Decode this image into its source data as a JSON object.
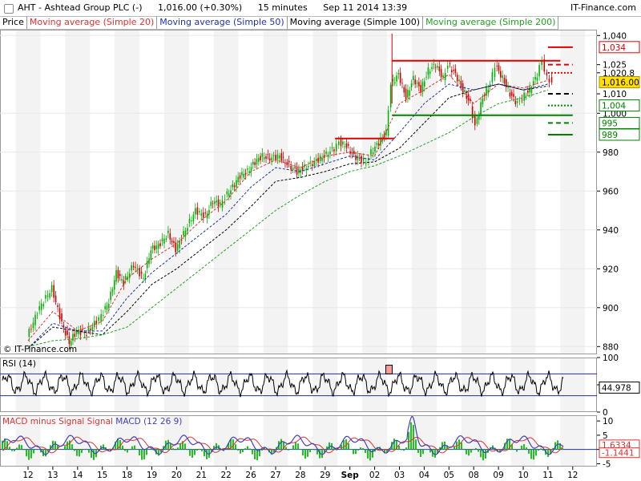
{
  "header": {
    "symbol": "AHT - Ashtead Group PLC (-)",
    "quote": "1,016.00 (+0.30%)",
    "interval": "15 minutes",
    "datetime": "Sep 11 2014 13:39",
    "brand": "IT-Finance.com"
  },
  "legend": [
    {
      "label": "Price",
      "color": "#000000"
    },
    {
      "label": "Moving average (Simple 20)",
      "color": "#e03030"
    },
    {
      "label": "Moving average (Simple 50)",
      "color": "#2030b0"
    },
    {
      "label": "Moving average (Simple 100)",
      "color": "#000000"
    },
    {
      "label": "Moving average (Simple 200)",
      "color": "#20a020"
    }
  ],
  "watermark": "© IT-Finance.com",
  "colors": {
    "up": "#00b000",
    "down": "#d00000",
    "ma20": "#e03030",
    "ma50": "#2030b0",
    "ma100": "#000000",
    "ma200": "#20a020",
    "level_red": "#e00000",
    "level_green": "#008000",
    "level_black": "#000000",
    "grid": "#e8e8e8",
    "rsi_line": "#2030a0",
    "macd_line": "#4040c0",
    "signal_line": "#e03030",
    "hist": "#20c020"
  },
  "chart_data": [
    {
      "type": "candlestick",
      "panel": "price",
      "x_tick_labels": [
        "12",
        "13",
        "14",
        "15",
        "18",
        "19",
        "20",
        "21",
        "22",
        "26",
        "27",
        "28",
        "29",
        "Sep",
        "02",
        "03",
        "04",
        "05",
        "08",
        "09",
        "10",
        "11",
        "12"
      ],
      "ylim": [
        876,
        1043
      ],
      "y_ticks": [
        880,
        900,
        920,
        940,
        960,
        980,
        1000,
        1010,
        1020.8,
        1025,
        1040
      ],
      "y_tick_labels": [
        "880",
        "900",
        "920",
        "940",
        "960",
        "980",
        "1,000",
        "1,010",
        "1,020.8",
        "1,025",
        "1,040"
      ],
      "price_path": [
        [
          0,
          885
        ],
        [
          0.5,
          900
        ],
        [
          1.0,
          910
        ],
        [
          1.4,
          892
        ],
        [
          1.7,
          882
        ],
        [
          2.0,
          888
        ],
        [
          2.4,
          887
        ],
        [
          2.8,
          893
        ],
        [
          3.0,
          896
        ],
        [
          3.3,
          903
        ],
        [
          3.6,
          918
        ],
        [
          3.9,
          913
        ],
        [
          4.3,
          922
        ],
        [
          4.7,
          915
        ],
        [
          5.0,
          930
        ],
        [
          5.3,
          932
        ],
        [
          5.7,
          938
        ],
        [
          6.0,
          930
        ],
        [
          6.4,
          940
        ],
        [
          6.8,
          950
        ],
        [
          7.2,
          947
        ],
        [
          7.5,
          955
        ],
        [
          7.8,
          953
        ],
        [
          8.0,
          957
        ],
        [
          8.3,
          962
        ],
        [
          8.6,
          968
        ],
        [
          8.9,
          970
        ],
        [
          9.2,
          975
        ],
        [
          9.5,
          978
        ],
        [
          9.8,
          977
        ],
        [
          10.2,
          978
        ],
        [
          10.5,
          974
        ],
        [
          10.9,
          970
        ],
        [
          11.2,
          972
        ],
        [
          11.6,
          975
        ],
        [
          12.0,
          978
        ],
        [
          12.4,
          982
        ],
        [
          12.6,
          985
        ],
        [
          12.9,
          983
        ],
        [
          13.2,
          978
        ],
        [
          13.5,
          976
        ],
        [
          13.7,
          975
        ],
        [
          13.9,
          980
        ],
        [
          14.2,
          985
        ],
        [
          14.5,
          990
        ],
        [
          14.7,
          1015
        ],
        [
          15.0,
          1020
        ],
        [
          15.3,
          1008
        ],
        [
          15.6,
          1018
        ],
        [
          15.9,
          1012
        ],
        [
          16.2,
          1022
        ],
        [
          16.5,
          1025
        ],
        [
          16.8,
          1018
        ],
        [
          17.0,
          1025
        ],
        [
          17.3,
          1020
        ],
        [
          17.6,
          1012
        ],
        [
          17.9,
          1005
        ],
        [
          18.1,
          993
        ],
        [
          18.4,
          1008
        ],
        [
          18.7,
          1015
        ],
        [
          18.9,
          1025
        ],
        [
          19.2,
          1018
        ],
        [
          19.5,
          1010
        ],
        [
          19.8,
          1005
        ],
        [
          20.0,
          1008
        ],
        [
          20.3,
          1012
        ],
        [
          20.6,
          1020
        ],
        [
          20.8,
          1027
        ],
        [
          21.0,
          1018
        ],
        [
          21.2,
          1016
        ]
      ],
      "series": [
        {
          "name": "Moving average (Simple 20)",
          "points": [
            [
              0,
              883
            ],
            [
              1,
              898
            ],
            [
              2,
              888
            ],
            [
              3,
              893
            ],
            [
              4,
              915
            ],
            [
              5,
              925
            ],
            [
              6,
              933
            ],
            [
              7,
              945
            ],
            [
              8,
              955
            ],
            [
              9,
              970
            ],
            [
              10,
              976
            ],
            [
              11,
              972
            ],
            [
              12,
              978
            ],
            [
              13,
              980
            ],
            [
              14,
              978
            ],
            [
              15,
              1005
            ],
            [
              16,
              1012
            ],
            [
              17,
              1020
            ],
            [
              18,
              1005
            ],
            [
              19,
              1015
            ],
            [
              20,
              1013
            ],
            [
              21,
              1017
            ]
          ]
        },
        {
          "name": "Moving average (Simple 50)",
          "points": [
            [
              0,
              879
            ],
            [
              1,
              892
            ],
            [
              2,
              888
            ],
            [
              3,
              888
            ],
            [
              4,
              905
            ],
            [
              5,
              918
            ],
            [
              6,
              928
            ],
            [
              7,
              938
            ],
            [
              8,
              948
            ],
            [
              9,
              962
            ],
            [
              10,
              972
            ],
            [
              11,
              970
            ],
            [
              12,
              974
            ],
            [
              13,
              978
            ],
            [
              14,
              976
            ],
            [
              15,
              990
            ],
            [
              16,
              1005
            ],
            [
              17,
              1015
            ],
            [
              18,
              1012
            ],
            [
              19,
              1015
            ],
            [
              20,
              1012
            ],
            [
              21,
              1015
            ]
          ]
        },
        {
          "name": "Moving average (Simple 100)",
          "points": [
            [
              0,
              879
            ],
            [
              1,
              890
            ],
            [
              2,
              888
            ],
            [
              3,
              886
            ],
            [
              4,
              898
            ],
            [
              5,
              912
            ],
            [
              6,
              920
            ],
            [
              7,
              930
            ],
            [
              8,
              940
            ],
            [
              9,
              952
            ],
            [
              10,
              965
            ],
            [
              11,
              967
            ],
            [
              12,
              970
            ],
            [
              13,
              974
            ],
            [
              14,
              975
            ],
            [
              15,
              982
            ],
            [
              16,
              995
            ],
            [
              17,
              1008
            ],
            [
              18,
              1012
            ],
            [
              19,
              1015
            ],
            [
              20,
              1012
            ],
            [
              21,
              1014
            ]
          ]
        },
        {
          "name": "Moving average (Simple 200)",
          "points": [
            [
              0,
              880
            ],
            [
              1,
              883
            ],
            [
              2,
              884
            ],
            [
              3,
              886
            ],
            [
              4,
              890
            ],
            [
              5,
              900
            ],
            [
              6,
              910
            ],
            [
              7,
              920
            ],
            [
              8,
              930
            ],
            [
              9,
              940
            ],
            [
              10,
              950
            ],
            [
              11,
              958
            ],
            [
              12,
              965
            ],
            [
              13,
              970
            ],
            [
              14,
              973
            ],
            [
              15,
              978
            ],
            [
              16,
              984
            ],
            [
              17,
              990
            ],
            [
              18,
              998
            ],
            [
              19,
              1005
            ],
            [
              20,
              1008
            ],
            [
              21,
              1012
            ]
          ]
        }
      ],
      "levels": [
        {
          "x_from": 12.4,
          "x_to": 14.8,
          "y": 987,
          "color": "#e00000",
          "style": "solid"
        },
        {
          "x_from": 14.7,
          "x_to": 21.5,
          "y": 1027,
          "color": "#e00000",
          "style": "solid"
        },
        {
          "x_from": 14.7,
          "x_to": 22.0,
          "y": 999,
          "color": "#008000",
          "style": "solid"
        },
        {
          "x_from": 21.0,
          "x_to": 22.0,
          "y": 1034,
          "color": "#e00000",
          "style": "solid"
        },
        {
          "x_from": 21.0,
          "x_to": 22.0,
          "y": 1025,
          "color": "#e00000",
          "style": "dashed"
        },
        {
          "x_from": 21.0,
          "x_to": 22.0,
          "y": 1020.8,
          "color": "#e00000",
          "style": "dotted"
        },
        {
          "x_from": 21.0,
          "x_to": 22.0,
          "y": 1010,
          "color": "#000000",
          "style": "dashed"
        },
        {
          "x_from": 21.0,
          "x_to": 22.0,
          "y": 1004,
          "color": "#008000",
          "style": "dotted"
        },
        {
          "x_from": 21.0,
          "x_to": 22.0,
          "y": 995,
          "color": "#008000",
          "style": "dashed"
        },
        {
          "x_from": 21.0,
          "x_to": 22.0,
          "y": 989,
          "color": "#008000",
          "style": "solid"
        }
      ],
      "value_tags": [
        {
          "label": "1,034",
          "y": 1034,
          "border": "#e00000",
          "fill": "#ffffff",
          "text": "#e00000"
        },
        {
          "label": "1,016.00",
          "y": 1016,
          "border": "#b09000",
          "fill": "#ffe000",
          "text": "#000000"
        },
        {
          "label": "1,004",
          "y": 1004,
          "border": "#008000",
          "fill": "#ffffff",
          "text": "#008000"
        },
        {
          "label": "995",
          "y": 995,
          "border": "#008000",
          "fill": "#ffffff",
          "text": "#008000"
        },
        {
          "label": "989",
          "y": 989,
          "border": "#008000",
          "fill": "#ffffff",
          "text": "#008000"
        }
      ]
    },
    {
      "type": "line",
      "panel": "rsi",
      "title": "RSI (14)",
      "ylim": [
        0,
        100
      ],
      "y_ticks": [
        0,
        50,
        100
      ],
      "y_tick_labels": [
        "0",
        "50",
        "100"
      ],
      "bands": [
        30,
        70
      ],
      "last_value_label": "44.978",
      "last_value": 44.978
    },
    {
      "type": "line",
      "panel": "macd",
      "titles": [
        "MACD minus Signal",
        "Signal",
        "MACD (12 26 9)"
      ],
      "ylim": [
        -6,
        12
      ],
      "y_ticks": [
        -5,
        0,
        5,
        10
      ],
      "y_tick_labels": [
        "-5",
        "0",
        "5",
        "10"
      ],
      "value_tags": [
        {
          "label": "1.6334",
          "y": 1.6334,
          "color": "#e03030"
        },
        {
          "label": "-1.1441",
          "y": -1.1441,
          "color": "#e03030"
        }
      ]
    }
  ]
}
